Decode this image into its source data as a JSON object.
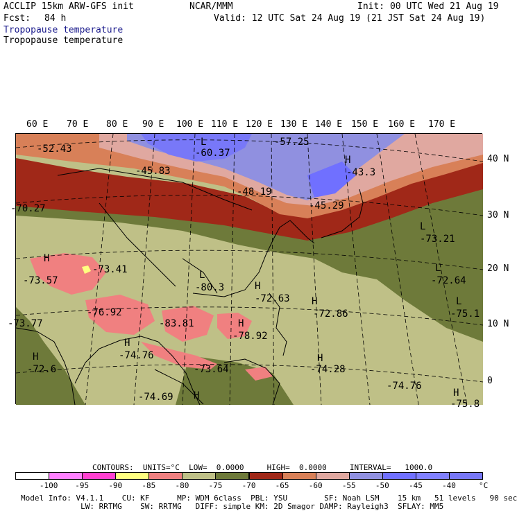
{
  "header": {
    "model": "ACCLIP 15km ARW-GFS init",
    "org": "NCAR/MMM",
    "init": "Init: 00 UTC Wed 21 Aug 19",
    "fcst_label": "Fcst:",
    "fcst_value": "84 h",
    "valid": "Valid: 12 UTC Sat 24 Aug 19 (21 JST Sat 24 Aug 19)",
    "field1": "Tropopause temperature",
    "field2": "Tropopause temperature"
  },
  "map": {
    "lon_labels": [
      "60 E",
      "70 E",
      "80 E",
      "90 E",
      "100 E",
      "110 E",
      "120 E",
      "130 E",
      "140 E",
      "150 E",
      "160 E",
      "170 E"
    ],
    "lat_labels": [
      "40 N",
      "30 N",
      "20 N",
      "10 N",
      "0"
    ],
    "annotations": [
      {
        "text": "-52.43"
      },
      {
        "text": "-60.37"
      },
      {
        "text": "-57.25"
      },
      {
        "text": "L"
      },
      {
        "text": "-45.83"
      },
      {
        "text": "H"
      },
      {
        "text": "-43.3"
      },
      {
        "text": "-48.19"
      },
      {
        "text": "-45.29"
      },
      {
        "text": "-70.27"
      },
      {
        "text": "L"
      },
      {
        "text": "-73.21"
      },
      {
        "text": "H"
      },
      {
        "text": "-73.41"
      },
      {
        "text": "L"
      },
      {
        "text": "-72.64"
      },
      {
        "text": "-73.57"
      },
      {
        "text": "L"
      },
      {
        "text": "-80.3"
      },
      {
        "text": "H"
      },
      {
        "text": "-72.63"
      },
      {
        "text": "H"
      },
      {
        "text": "-72.86"
      },
      {
        "text": "L"
      },
      {
        "text": "-75.1"
      },
      {
        "text": "-76.92"
      },
      {
        "text": "-83.81"
      },
      {
        "text": "H"
      },
      {
        "text": "-78.92"
      },
      {
        "text": "-73.77"
      },
      {
        "text": "H"
      },
      {
        "text": "-74.76"
      },
      {
        "text": "H"
      },
      {
        "text": "-72.6"
      },
      {
        "text": "-73.64"
      },
      {
        "text": "H"
      },
      {
        "text": "-74.28"
      },
      {
        "text": "-74.76"
      },
      {
        "text": "-74.69"
      },
      {
        "text": "H"
      },
      {
        "text": "H"
      },
      {
        "text": "-75.8"
      }
    ]
  },
  "contours": {
    "line": "CONTOURS:  UNITS=°C  LOW=  0.0000     HIGH=  0.0000     INTERVAL=   1000.0"
  },
  "colorbar": {
    "colors": [
      "#ffffff",
      "#ff80ff",
      "#ff40d0",
      "#ffff80",
      "#f08080",
      "#bfc087",
      "#6e7a3a",
      "#a02818",
      "#d88058",
      "#e0a8a0",
      "#9090e0",
      "#7070ff",
      "#8080ff",
      "#7878f8"
    ],
    "labels": [
      "-100",
      "-95",
      "-90",
      "-85",
      "-80",
      "-75",
      "-70",
      "-65",
      "-60",
      "-55",
      "-50",
      "-45",
      "-40"
    ],
    "unit": "°C"
  },
  "footer": {
    "line1": "Model Info: V4.1.1    CU: KF      MP: WDM 6class  PBL: YSU        SF: Noah LSM    15 km   51 levels   90 sec",
    "line2": "             LW: RRTMG    SW: RRTMG   DIFF: simple KM: 2D Smagor DAMP: Rayleigh3  SFLAY: MM5"
  }
}
